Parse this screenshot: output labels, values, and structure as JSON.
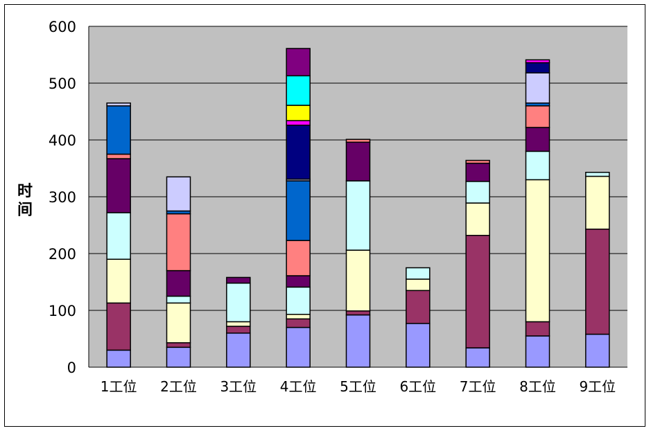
{
  "chart_data": {
    "type": "bar",
    "stacked": true,
    "ylabel": "时间",
    "ylim": [
      0,
      600
    ],
    "yticks": [
      "0",
      "100",
      "200",
      "300",
      "400",
      "500",
      "600"
    ],
    "grid": true,
    "categories": [
      "1工位",
      "2工位",
      "3工位",
      "4工位",
      "5工位",
      "6工位",
      "7工位",
      "8工位",
      "9工位"
    ],
    "colors": {
      "plot_bg": "#c0c0c0",
      "s1": "#9999ff",
      "s2": "#993366",
      "s3": "#ffffcc",
      "s4": "#ccffff",
      "s5": "#660066",
      "s6": "#ff8080",
      "s7": "#0066cc",
      "s8": "#ccccff",
      "s9": "#000080",
      "s10": "#ff00ff",
      "s11": "#ffff00",
      "s12": "#00ffff",
      "s13": "#800080"
    },
    "stacks": [
      [
        [
          30,
          "s1"
        ],
        [
          83,
          "s2"
        ],
        [
          77,
          "s3"
        ],
        [
          82,
          "s4"
        ],
        [
          95,
          "s5"
        ],
        [
          8,
          "s6"
        ],
        [
          85,
          "s7"
        ],
        [
          5,
          "s8"
        ]
      ],
      [
        [
          35,
          "s1"
        ],
        [
          8,
          "s2"
        ],
        [
          70,
          "s3"
        ],
        [
          12,
          "s4"
        ],
        [
          45,
          "s5"
        ],
        [
          100,
          "s6"
        ],
        [
          5,
          "s7"
        ],
        [
          60,
          "s8"
        ]
      ],
      [
        [
          60,
          "s1"
        ],
        [
          12,
          "s2"
        ],
        [
          8,
          "s3"
        ],
        [
          68,
          "s4"
        ],
        [
          10,
          "s5"
        ]
      ],
      [
        [
          70,
          "s1"
        ],
        [
          15,
          "s2"
        ],
        [
          8,
          "s3"
        ],
        [
          48,
          "s4"
        ],
        [
          20,
          "s5"
        ],
        [
          62,
          "s6"
        ],
        [
          105,
          "s7"
        ],
        [
          3,
          "s8"
        ],
        [
          95,
          "s9"
        ],
        [
          8,
          "s10"
        ],
        [
          27,
          "s11"
        ],
        [
          52,
          "s12"
        ],
        [
          48,
          "s13"
        ]
      ],
      [
        [
          92,
          "s1"
        ],
        [
          7,
          "s2"
        ],
        [
          107,
          "s3"
        ],
        [
          122,
          "s4"
        ],
        [
          68,
          "s5"
        ],
        [
          5,
          "s6"
        ]
      ],
      [
        [
          77,
          "s1"
        ],
        [
          58,
          "s2"
        ],
        [
          20,
          "s3"
        ],
        [
          20,
          "s4"
        ]
      ],
      [
        [
          34,
          "s1"
        ],
        [
          198,
          "s2"
        ],
        [
          57,
          "s3"
        ],
        [
          38,
          "s4"
        ],
        [
          32,
          "s5"
        ],
        [
          5,
          "s6"
        ]
      ],
      [
        [
          55,
          "s1"
        ],
        [
          25,
          "s2"
        ],
        [
          250,
          "s3"
        ],
        [
          50,
          "s4"
        ],
        [
          42,
          "s5"
        ],
        [
          38,
          "s6"
        ],
        [
          5,
          "s7"
        ],
        [
          53,
          "s8"
        ],
        [
          18,
          "s9"
        ],
        [
          5,
          "s10"
        ]
      ],
      [
        [
          58,
          "s1"
        ],
        [
          185,
          "s2"
        ],
        [
          93,
          "s3"
        ],
        [
          7,
          "s4"
        ]
      ]
    ]
  }
}
